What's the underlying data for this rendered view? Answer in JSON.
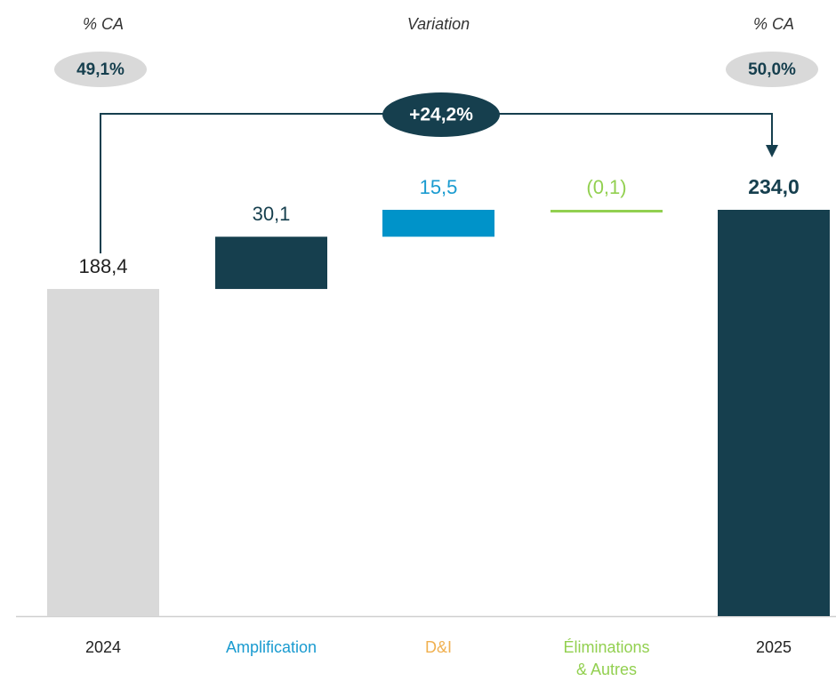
{
  "chart_data": {
    "type": "waterfall",
    "categories": [
      "2024",
      "Amplification",
      "D&I",
      "Éliminations & Autres",
      "2025"
    ],
    "values": [
      188.4,
      30.1,
      15.5,
      -0.1,
      234.0
    ],
    "value_labels": [
      "188,4",
      "30,1",
      "15,5",
      "(0,1)",
      "234,0"
    ],
    "measures": [
      "absolute",
      "relative",
      "relative",
      "relative",
      "total"
    ],
    "colors": [
      "#d9d9d9",
      "#163f4e",
      "#0093c9",
      "#92d050",
      "#163f4e"
    ],
    "label_colors": [
      "#222222",
      "#1a9bd0",
      "#f0b050",
      "#92d050",
      "#222222"
    ],
    "value_label_colors": [
      "#222222",
      "#163f4e",
      "#1a9bd0",
      "#92d050",
      "#163f4e"
    ],
    "annotations": {
      "left_header": "% CA",
      "center_header": "Variation",
      "right_header": "% CA",
      "left_ratio": "49,1%",
      "right_ratio": "50,0%",
      "variation": "+24,2%"
    }
  }
}
